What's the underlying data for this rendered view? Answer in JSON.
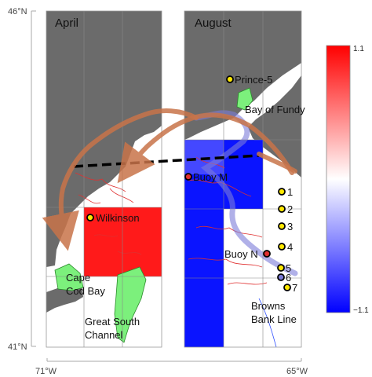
{
  "axes": {
    "lat_top": "46°N",
    "lat_bottom": "41°N",
    "lon_left": "71°W",
    "lon_right": "65°W"
  },
  "panels": {
    "left_title": "April",
    "right_title": "August"
  },
  "places": {
    "wilkinson": "Wilkinson",
    "cape_cod_bay_line1": "Cape",
    "cape_cod_bay_line2": "Cod Bay",
    "great_south_channel_line1": "Great South",
    "great_south_channel_line2": "Channel",
    "prince5": "Prince-5",
    "bay_of_fundy": "Bay of Fundy",
    "buoy_m": "Buoy M",
    "buoy_n": "Buoy N",
    "browns_line1": "Browns",
    "browns_line2": "Bank Line",
    "stations": [
      "1",
      "2",
      "3",
      "4",
      "5",
      "6",
      "7"
    ]
  },
  "colorbar": {
    "max": "1.1",
    "min": "−1.1",
    "colors": {
      "high": "#ff0000",
      "mid": "#ffffff",
      "low": "#0000ff"
    }
  },
  "colors": {
    "land": "#6b6b6b",
    "positive_anomaly": "#ff1a1a",
    "negative_anomaly": "#0a14ff",
    "green_zones": "#7cf07c",
    "current_arrow": "#c8744a",
    "blue_current": "#7b7bd8"
  }
}
